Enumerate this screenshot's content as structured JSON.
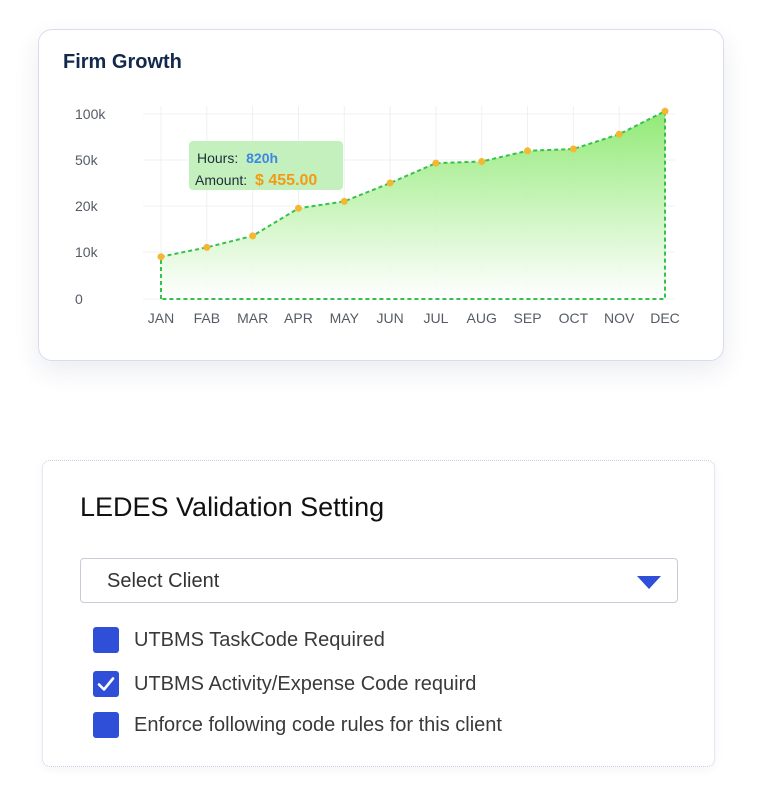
{
  "chart_card": {
    "title": "Firm Growth",
    "tooltip": {
      "hours_label": "Hours:",
      "hours_value": "820h",
      "amount_label": "Amount:",
      "amount_value": "$ 455.00"
    }
  },
  "chart_data": {
    "type": "area",
    "title": "Firm Growth",
    "categories": [
      "JAN",
      "FAB",
      "MAR",
      "APR",
      "MAY",
      "JUN",
      "JUL",
      "AUG",
      "SEP",
      "OCT",
      "NOV",
      "DEC"
    ],
    "y_ticks": [
      "0",
      "10k",
      "20k",
      "50k",
      "100k"
    ],
    "y_tick_values": [
      0,
      10000,
      20000,
      50000,
      100000
    ],
    "values": [
      9000,
      11000,
      13500,
      19500,
      23000,
      35000,
      48000,
      49000,
      60000,
      62000,
      78000,
      103000
    ],
    "grid": true,
    "colors": {
      "line": "#34c24a",
      "point": "#f5b731",
      "fill_top": "#8be86e",
      "fill_bottom": "#ffffff"
    }
  },
  "ledes": {
    "title": "LEDES Validation Setting",
    "select_placeholder": "Select Client",
    "options": [
      {
        "label": "UTBMS TaskCode Required",
        "checked": false
      },
      {
        "label": "UTBMS Activity/Expense Code requird",
        "checked": true
      },
      {
        "label": "Enforce following code rules for this client",
        "checked": false
      }
    ],
    "accent_color": "#2f4fd8"
  }
}
